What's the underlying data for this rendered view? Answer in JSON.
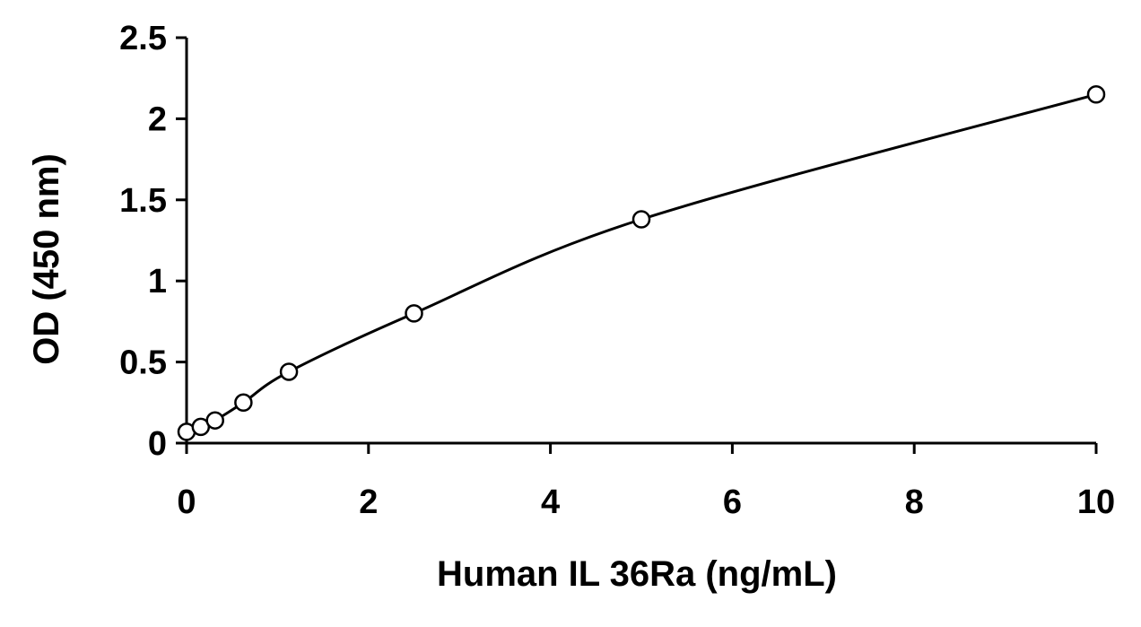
{
  "chart_data": {
    "type": "scatter",
    "title": "",
    "xlabel": "Human IL 36Ra (ng/mL)",
    "ylabel": "OD (450 nm)",
    "xlim": [
      0,
      10
    ],
    "ylim": [
      0,
      2.5
    ],
    "x_ticks": [
      "0",
      "2",
      "4",
      "6",
      "8",
      "10"
    ],
    "y_ticks": [
      "0",
      "0.5",
      "1",
      "1.5",
      "2",
      "2.5"
    ],
    "x_tick_values": [
      0,
      2,
      4,
      6,
      8,
      10
    ],
    "y_tick_values": [
      0,
      0.5,
      1,
      1.5,
      2,
      2.5
    ],
    "grid": false,
    "legend": "none",
    "series": [
      {
        "marker": "open-circle",
        "x": [
          0,
          0.156,
          0.313,
          0.625,
          1.125,
          2.5,
          5,
          10
        ],
        "y": [
          0.07,
          0.1,
          0.14,
          0.25,
          0.44,
          0.8,
          1.38,
          2.15
        ]
      }
    ],
    "fit_curve": "smooth"
  }
}
